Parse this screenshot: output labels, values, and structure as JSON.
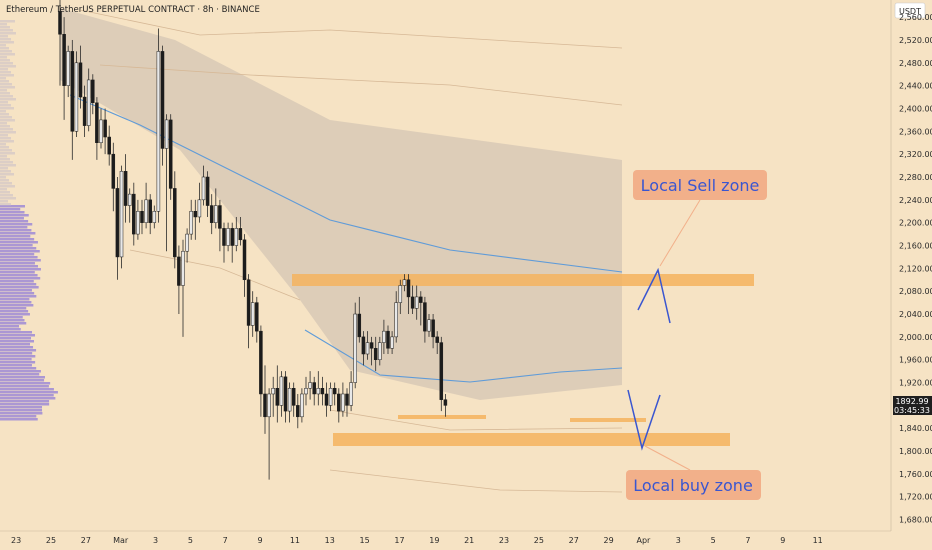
{
  "chart_data": {
    "type": "candlestick",
    "title": "Ethereum / TetherUS PERPETUAL CONTRACT · 8h · BINANCE",
    "currency": "USDT",
    "ylim": [
      1660,
      2590
    ],
    "y_ticks": [
      1680,
      1720,
      1760,
      1800,
      1840,
      1880,
      1920,
      1960,
      2000,
      2040,
      2080,
      2120,
      2160,
      2200,
      2240,
      2280,
      2320,
      2360,
      2400,
      2440,
      2480,
      2520,
      2560
    ],
    "x_ticks": [
      {
        "label": "23",
        "slot": -10.7
      },
      {
        "label": "25",
        "slot": -2.2
      },
      {
        "label": "27",
        "slot": 6.3
      },
      {
        "label": "Mar",
        "slot": 14.8
      },
      {
        "label": "3",
        "slot": 23.3
      },
      {
        "label": "5",
        "slot": 31.8
      },
      {
        "label": "7",
        "slot": 40.3
      },
      {
        "label": "9",
        "slot": 48.8
      },
      {
        "label": "11",
        "slot": 57.3
      },
      {
        "label": "13",
        "slot": 65.8
      },
      {
        "label": "15",
        "slot": 74.3
      },
      {
        "label": "17",
        "slot": 82.8
      },
      {
        "label": "19",
        "slot": 91.3
      },
      {
        "label": "21",
        "slot": 99.8
      },
      {
        "label": "23",
        "slot": 108.3
      },
      {
        "label": "25",
        "slot": 116.8
      },
      {
        "label": "27",
        "slot": 125.3
      },
      {
        "label": "29",
        "slot": 133.8
      },
      {
        "label": "Apr",
        "slot": 142.3
      },
      {
        "label": "3",
        "slot": 150.8
      },
      {
        "label": "5",
        "slot": 159.3
      },
      {
        "label": "7",
        "slot": 167.8
      },
      {
        "label": "9",
        "slot": 176.3
      },
      {
        "label": "11",
        "slot": 184.8
      }
    ],
    "current_price": 1892.99,
    "countdown": "03:45:33",
    "candles": [
      [
        2570,
        2530,
        2590,
        2440
      ],
      [
        2530,
        2440,
        2560,
        2380
      ],
      [
        2440,
        2500,
        2510,
        2420
      ],
      [
        2500,
        2360,
        2520,
        2310
      ],
      [
        2360,
        2480,
        2500,
        2350
      ],
      [
        2480,
        2420,
        2510,
        2400
      ],
      [
        2420,
        2370,
        2440,
        2350
      ],
      [
        2370,
        2450,
        2470,
        2360
      ],
      [
        2450,
        2410,
        2460,
        2390
      ],
      [
        2410,
        2340,
        2420,
        2310
      ],
      [
        2340,
        2380,
        2400,
        2330
      ],
      [
        2380,
        2350,
        2400,
        2320
      ],
      [
        2350,
        2320,
        2370,
        2300
      ],
      [
        2320,
        2260,
        2340,
        2220
      ],
      [
        2260,
        2140,
        2280,
        2100
      ],
      [
        2140,
        2290,
        2300,
        2120
      ],
      [
        2290,
        2230,
        2320,
        2200
      ],
      [
        2230,
        2250,
        2260,
        2200
      ],
      [
        2250,
        2180,
        2270,
        2160
      ],
      [
        2180,
        2220,
        2240,
        2170
      ],
      [
        2220,
        2200,
        2240,
        2180
      ],
      [
        2200,
        2240,
        2270,
        2190
      ],
      [
        2240,
        2200,
        2250,
        2180
      ],
      [
        2200,
        2220,
        2230,
        2190
      ],
      [
        2220,
        2500,
        2540,
        2200
      ],
      [
        2500,
        2330,
        2510,
        2300
      ],
      [
        2330,
        2380,
        2390,
        2150
      ],
      [
        2380,
        2260,
        2390,
        2240
      ],
      [
        2260,
        2140,
        2290,
        2120
      ],
      [
        2140,
        2090,
        2160,
        2040
      ],
      [
        2090,
        2150,
        2170,
        2000
      ],
      [
        2150,
        2180,
        2190,
        2130
      ],
      [
        2180,
        2220,
        2240,
        2170
      ],
      [
        2220,
        2210,
        2240,
        2170
      ],
      [
        2210,
        2240,
        2270,
        2200
      ],
      [
        2240,
        2280,
        2300,
        2230
      ],
      [
        2280,
        2230,
        2290,
        2210
      ],
      [
        2230,
        2200,
        2250,
        2180
      ],
      [
        2200,
        2230,
        2260,
        2190
      ],
      [
        2230,
        2190,
        2240,
        2150
      ],
      [
        2190,
        2160,
        2200,
        2130
      ],
      [
        2160,
        2190,
        2200,
        2150
      ],
      [
        2190,
        2160,
        2200,
        2130
      ],
      [
        2160,
        2190,
        2210,
        2150
      ],
      [
        2190,
        2170,
        2210,
        2160
      ],
      [
        2170,
        2100,
        2180,
        2070
      ],
      [
        2100,
        2020,
        2110,
        1980
      ],
      [
        2020,
        2060,
        2080,
        2000
      ],
      [
        2060,
        2010,
        2070,
        1990
      ],
      [
        2010,
        1900,
        2020,
        1860
      ],
      [
        1900,
        1860,
        1950,
        1830
      ],
      [
        1860,
        1900,
        1910,
        1750
      ],
      [
        1900,
        1910,
        1930,
        1860
      ],
      [
        1910,
        1880,
        1950,
        1850
      ],
      [
        1880,
        1930,
        1940,
        1860
      ],
      [
        1930,
        1870,
        1940,
        1850
      ],
      [
        1870,
        1910,
        1920,
        1850
      ],
      [
        1910,
        1880,
        1920,
        1860
      ],
      [
        1880,
        1860,
        1900,
        1840
      ],
      [
        1860,
        1900,
        1910,
        1850
      ],
      [
        1900,
        1910,
        1930,
        1880
      ],
      [
        1910,
        1920,
        1940,
        1890
      ],
      [
        1920,
        1900,
        1930,
        1880
      ],
      [
        1900,
        1910,
        1940,
        1880
      ],
      [
        1910,
        1900,
        1930,
        1880
      ],
      [
        1900,
        1880,
        1920,
        1860
      ],
      [
        1880,
        1910,
        1920,
        1870
      ],
      [
        1910,
        1900,
        1920,
        1880
      ],
      [
        1900,
        1870,
        1910,
        1850
      ],
      [
        1870,
        1900,
        1920,
        1860
      ],
      [
        1900,
        1880,
        1910,
        1860
      ],
      [
        1880,
        1920,
        1940,
        1870
      ],
      [
        1920,
        2040,
        2060,
        1910
      ],
      [
        2040,
        2000,
        2070,
        1990
      ],
      [
        2000,
        1970,
        2010,
        1950
      ],
      [
        1970,
        1990,
        2010,
        1960
      ],
      [
        1990,
        1980,
        2000,
        1950
      ],
      [
        1980,
        1960,
        2000,
        1940
      ],
      [
        1960,
        1990,
        2000,
        1950
      ],
      [
        1990,
        2010,
        2030,
        1970
      ],
      [
        2010,
        1980,
        2020,
        1970
      ],
      [
        1980,
        2000,
        2010,
        1970
      ],
      [
        2000,
        2060,
        2080,
        1990
      ],
      [
        2060,
        2090,
        2100,
        2040
      ],
      [
        2090,
        2100,
        2110,
        2080
      ],
      [
        2100,
        2070,
        2110,
        2040
      ],
      [
        2070,
        2050,
        2090,
        2040
      ],
      [
        2050,
        2070,
        2090,
        2030
      ],
      [
        2070,
        2060,
        2080,
        2020
      ],
      [
        2060,
        2010,
        2070,
        1990
      ],
      [
        2010,
        2030,
        2040,
        2000
      ],
      [
        2030,
        2000,
        2040,
        1980
      ],
      [
        2000,
        1990,
        2010,
        1970
      ],
      [
        1990,
        1890,
        2000,
        1870
      ],
      [
        1890,
        1880,
        1900,
        1860
      ]
    ],
    "annotations": {
      "sell_zone": {
        "label": "Local Sell zone",
        "price_low": 2100,
        "price_high": 2120
      },
      "buy_zone": {
        "label": "Local buy zone",
        "price_low": 1813,
        "price_high": 1830
      }
    },
    "colors": {
      "up": "#e8e8e8",
      "down": "#1c1c1c",
      "wick": "#2a2a2a",
      "zone": "#f5b35e",
      "label_bg": "#f2b08a",
      "label_text": "#3a56d0",
      "arrow": "#3a56d0",
      "volume_profile": "#9d8ad6",
      "price_tag": "#1f1f1f"
    }
  }
}
